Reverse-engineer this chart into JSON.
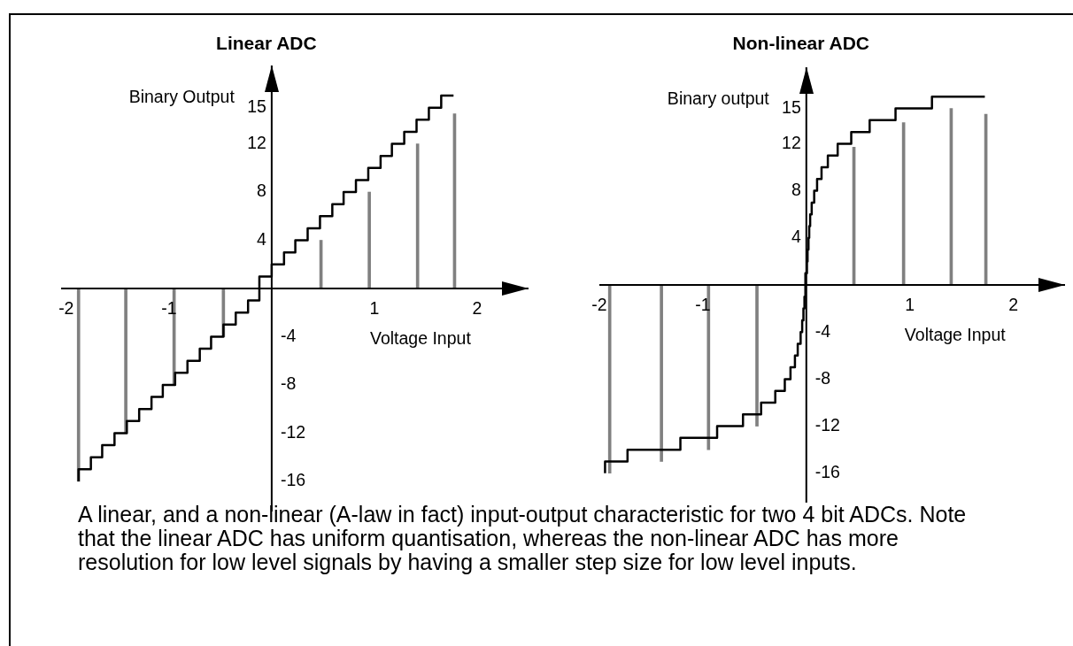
{
  "chart_data": [
    {
      "type": "step",
      "title": "Linear ADC",
      "xlabel": "Voltage Input",
      "ylabel": "Binary Output",
      "xlim": [
        -2.05,
        2.5
      ],
      "xticks": [
        -2,
        -1,
        1,
        2
      ],
      "ylim": [
        -18.5,
        18.5
      ],
      "yticks": [
        15,
        12,
        8,
        4
      ],
      "y2lim": [
        -18.5,
        18.5
      ],
      "y2ticks": [
        -4,
        -8,
        -12,
        -16
      ],
      "series": [
        {
          "color": "#000000",
          "x": [
            -1.88,
            -1.76,
            -1.65,
            -1.53,
            -1.41,
            -1.29,
            -1.17,
            -1.06,
            -0.94,
            -0.82,
            -0.7,
            -0.59,
            -0.47,
            -0.35,
            -0.23,
            -0.12,
            0,
            0.12,
            0.23,
            0.35,
            0.47,
            0.59,
            0.7,
            0.82,
            0.94,
            1.06,
            1.17,
            1.29,
            1.41,
            1.53,
            1.65,
            1.77
          ],
          "values": [
            -16,
            -15,
            -14,
            -13,
            -12,
            -11,
            -10,
            -9,
            -8,
            -7,
            -6,
            -5,
            -4,
            -3,
            -2,
            -1,
            1,
            2,
            3,
            4,
            5,
            6,
            7,
            8,
            9,
            10,
            11,
            12,
            13,
            14,
            15,
            16
          ]
        },
        {
          "type": "bar",
          "color": "#808080",
          "x": [
            -1.88,
            -1.42,
            -0.95,
            -0.47,
            0.48,
            0.95,
            1.42,
            1.78
          ],
          "values": [
            -16,
            -12,
            -8,
            -4,
            4,
            8,
            12,
            14.5
          ]
        }
      ],
      "annotations": [
        "A linear, and a non-linear (A-law in fact) input-output characteristic for two 4 bit ADCs. Note that the linear ADC has uniform quantisation, whereas the non-linear ADC has more resolution for low level signals by having a smaller step size for low level inputs."
      ]
    },
    {
      "type": "step",
      "title": "Non-linear ADC",
      "xlabel": "Voltage Input",
      "ylabel": "Binary output",
      "xlim": [
        -2,
        2.5
      ],
      "xticks": [
        -2,
        -1,
        1,
        2
      ],
      "ylim": [
        -18.5,
        18.5
      ],
      "yticks": [
        15,
        12,
        8,
        4
      ],
      "y2lim": [
        -18.5,
        18.5
      ],
      "y2ticks": [
        -4,
        -8,
        -12,
        -16
      ],
      "series": [
        {
          "color": "#000000",
          "x": [
            -1.945,
            -1.728,
            -1.217,
            -0.862,
            -0.612,
            -0.437,
            -0.3,
            -0.208,
            -0.153,
            -0.11,
            -0.083,
            -0.055,
            -0.04,
            -0.028,
            -0.018,
            -0.009,
            0.006,
            0.012,
            0.021,
            0.028,
            0.037,
            0.052,
            0.076,
            0.104,
            0.147,
            0.208,
            0.303,
            0.434,
            0.612,
            0.862,
            1.214,
            1.725
          ],
          "values": [
            -16,
            -15,
            -14,
            -13,
            -12,
            -11,
            -10,
            -9,
            -8,
            -7,
            -6,
            -5,
            -4,
            -3,
            -2,
            -1,
            1,
            2,
            3,
            4,
            5,
            6,
            7,
            8,
            9,
            10,
            11,
            12,
            13,
            14,
            15,
            16
          ]
        },
        {
          "type": "bar",
          "color": "#808080",
          "x": [
            -1.9,
            -1.4,
            -0.945,
            -0.477,
            0.46,
            0.94,
            1.4,
            1.735
          ],
          "values": [
            -16,
            -15,
            -14,
            -12,
            11.7,
            13.8,
            15,
            14.5
          ]
        }
      ]
    }
  ]
}
